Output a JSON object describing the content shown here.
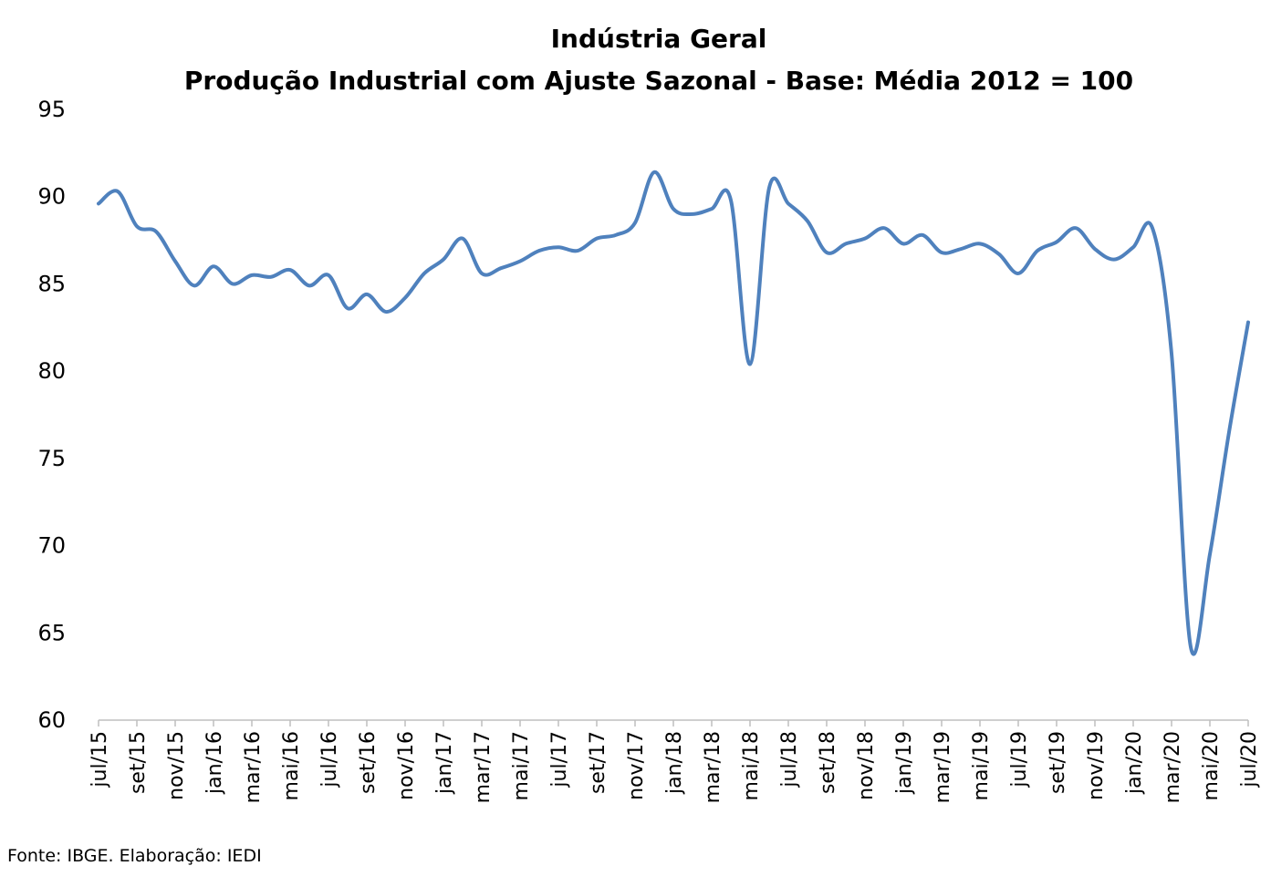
{
  "chart_data": {
    "type": "line",
    "title": "Indústria Geral",
    "subtitle": "Produção Industrial com Ajuste Sazonal - Base: Média 2012 = 100",
    "xlabel": "",
    "ylabel": "",
    "ylim": [
      60,
      95
    ],
    "yticks": [
      60,
      65,
      70,
      75,
      80,
      85,
      90,
      95
    ],
    "xtick_labels": [
      "jul/15",
      "set/15",
      "nov/15",
      "jan/16",
      "mar/16",
      "mai/16",
      "jul/16",
      "set/16",
      "nov/16",
      "jan/17",
      "mar/17",
      "mai/17",
      "jul/17",
      "set/17",
      "nov/17",
      "jan/18",
      "mar/18",
      "mai/18",
      "jul/18",
      "set/18",
      "nov/18",
      "jan/19",
      "mar/19",
      "mai/19",
      "jul/19",
      "set/19",
      "nov/19",
      "jan/20",
      "mar/20",
      "mai/20",
      "jul/20"
    ],
    "grid": false,
    "legend": "none",
    "line_color": "#4f81bd",
    "series": [
      {
        "values": [
          89.6,
          90.3,
          88.3,
          88.0,
          86.3,
          84.9,
          86.0,
          85.0,
          85.5,
          85.4,
          85.8,
          84.9,
          85.5,
          83.6,
          84.4,
          83.4,
          84.2,
          85.6,
          86.4,
          87.6,
          85.6,
          85.9,
          86.3,
          86.9,
          87.1,
          86.9,
          87.6,
          87.8,
          88.5,
          91.4,
          89.3,
          89.0,
          89.3,
          89.8,
          80.4,
          90.5,
          89.6,
          88.6,
          86.8,
          87.3,
          87.6,
          88.2,
          87.3,
          87.8,
          86.8,
          87.0,
          87.3,
          86.7,
          85.6,
          86.9,
          87.4,
          88.2,
          87.0,
          86.4,
          87.1,
          88.2,
          81.0,
          64.2,
          69.5,
          76.5,
          82.8
        ]
      }
    ],
    "source": "Fonte: IBGE. Elaboração: IEDI"
  }
}
